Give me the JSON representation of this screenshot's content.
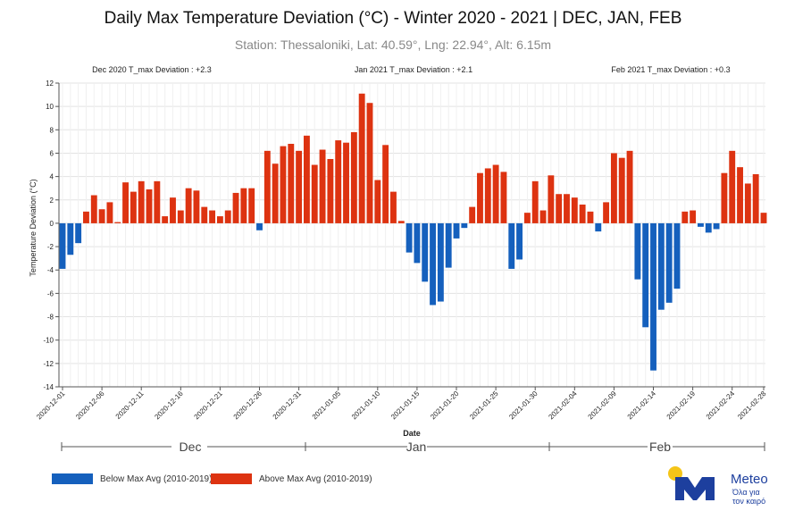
{
  "title": "Daily Max Temperature Deviation (°C) - Winter 2020 - 2021 | DEC, JAN, FEB",
  "subtitle": "Station: Thessaloniki, Lat: 40.59°, Lng: 22.94°, Alt: 6.15m",
  "colors": {
    "below": "#1560bd",
    "above": "#dd3311",
    "grid": "#e3e3e3",
    "axis": "#555555"
  },
  "month_annotations": [
    "Dec 2020 T_max Deviation : +2.3",
    "Jan 2021 T_max Deviation : +2.1",
    "Feb 2021 T_max Deviation : +0.3"
  ],
  "months": [
    "Dec",
    "Jan",
    "Feb"
  ],
  "legend": {
    "below": "Below Max Avg (2010-2019)",
    "above": "Above Max Avg (2010-2019)"
  },
  "logo": {
    "name": "Meteo",
    "tagline_1": "Όλα για",
    "tagline_2": "τον καιρό",
    "icon": "meteo-logo-icon"
  },
  "chart_data": {
    "type": "bar",
    "xlabel": "Date",
    "ylabel": "Temperature Deviation (°C)",
    "ylim": [
      -14,
      12
    ],
    "yticks": [
      -14,
      -12,
      -10,
      -8,
      -6,
      -4,
      -2,
      0,
      2,
      4,
      6,
      8,
      10,
      12
    ],
    "tick_labels": [
      "2020-12-01",
      "2020-12-06",
      "2020-12-11",
      "2020-12-16",
      "2020-12-21",
      "2020-12-26",
      "2020-12-31",
      "2021-01-05",
      "2021-01-10",
      "2021-01-15",
      "2021-01-20",
      "2021-01-25",
      "2021-01-30",
      "2021-02-04",
      "2021-02-09",
      "2021-02-14",
      "2021-02-19",
      "2021-02-24",
      "2021-02-28"
    ],
    "tick_indices": [
      0,
      5,
      10,
      15,
      20,
      25,
      30,
      35,
      40,
      45,
      50,
      55,
      60,
      65,
      70,
      75,
      80,
      85,
      89
    ],
    "start_date": "2020-12-01",
    "end_date": "2021-02-28",
    "values": [
      -3.9,
      -2.7,
      -1.7,
      1.0,
      2.4,
      1.2,
      1.8,
      0.1,
      3.5,
      2.7,
      3.6,
      2.9,
      3.6,
      0.6,
      2.2,
      1.1,
      3.0,
      2.8,
      1.4,
      1.1,
      0.6,
      1.1,
      2.6,
      3.0,
      3.0,
      -0.6,
      6.2,
      5.1,
      6.6,
      6.8,
      6.2,
      7.5,
      5.0,
      6.3,
      5.5,
      7.1,
      6.9,
      7.8,
      11.1,
      10.3,
      3.7,
      6.7,
      2.7,
      0.2,
      -2.5,
      -3.4,
      -5.0,
      -7.0,
      -6.7,
      -3.8,
      -1.3,
      -0.4,
      1.4,
      4.3,
      4.7,
      5.0,
      4.4,
      -3.9,
      -3.1,
      0.9,
      3.6,
      1.1,
      4.1,
      2.5,
      2.5,
      2.2,
      1.6,
      1.0,
      -0.7,
      1.8,
      6.0,
      5.6,
      6.2,
      -4.8,
      -8.9,
      -12.6,
      -7.4,
      -6.8,
      -5.6,
      1.0,
      1.1,
      -0.3,
      -0.8,
      -0.5,
      4.3,
      6.2,
      4.8,
      3.4,
      4.2,
      0.9
    ]
  }
}
